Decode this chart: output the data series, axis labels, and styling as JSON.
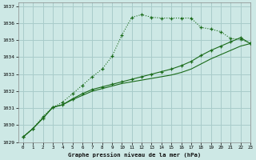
{
  "title": "Graphe pression niveau de la mer (hPa)",
  "bg_color": "#cde8e5",
  "grid_color": "#a8ccca",
  "line_color": "#1a6b1a",
  "xlim": [
    -0.5,
    23
  ],
  "ylim": [
    1029,
    1037.2
  ],
  "xticks": [
    0,
    1,
    2,
    3,
    4,
    5,
    6,
    7,
    8,
    9,
    10,
    11,
    12,
    13,
    14,
    15,
    16,
    17,
    18,
    19,
    20,
    21,
    22,
    23
  ],
  "yticks": [
    1029,
    1030,
    1031,
    1032,
    1033,
    1034,
    1035,
    1036,
    1037
  ],
  "series_dotted": [
    1029.3,
    1029.8,
    1030.5,
    1031.05,
    1031.35,
    1031.85,
    1032.35,
    1032.85,
    1033.3,
    1034.05,
    1035.3,
    1036.35,
    1036.5,
    1036.35,
    1036.3,
    1036.3,
    1036.3,
    1036.3,
    1035.75,
    1035.65,
    1035.5,
    1035.1,
    1035.05,
    1034.8
  ],
  "series_solid1": [
    1029.3,
    1029.8,
    1030.4,
    1031.05,
    1031.2,
    1031.55,
    1031.85,
    1032.1,
    1032.25,
    1032.4,
    1032.55,
    1032.7,
    1032.85,
    1033.0,
    1033.15,
    1033.3,
    1033.5,
    1033.75,
    1034.1,
    1034.4,
    1034.65,
    1034.9,
    1035.15,
    1034.8
  ],
  "series_solid2": [
    1029.3,
    1029.8,
    1030.4,
    1031.05,
    1031.2,
    1031.5,
    1031.75,
    1032.0,
    1032.15,
    1032.3,
    1032.45,
    1032.55,
    1032.65,
    1032.75,
    1032.85,
    1032.95,
    1033.1,
    1033.3,
    1033.6,
    1033.9,
    1034.15,
    1034.4,
    1034.65,
    1034.8
  ]
}
